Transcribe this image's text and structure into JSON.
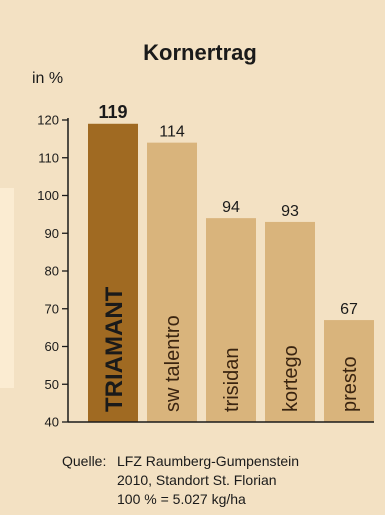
{
  "chart_data": {
    "type": "bar",
    "title": "Kornertrag",
    "ylabel": "in %",
    "xlabel": "",
    "ylim": [
      40,
      120
    ],
    "yticks": [
      40,
      50,
      60,
      70,
      80,
      90,
      100,
      110,
      120
    ],
    "grid": false,
    "legend": "none",
    "categories": [
      "TRIAMANT",
      "sw talentro",
      "trisidan",
      "kortego",
      "presto"
    ],
    "values": [
      119,
      114,
      94,
      93,
      67
    ],
    "highlight_index": 0,
    "colors": {
      "highlight_bar": "#a06a22",
      "bar": "#d9b47c",
      "background": "#f3e1c3",
      "axis": "#1a1a1a"
    }
  },
  "source": {
    "label": "Quelle:",
    "lines": [
      "LFZ Raumberg-Gumpenstein",
      "2010, Standort St. Florian",
      "100 % = 5.027 kg/ha"
    ]
  }
}
